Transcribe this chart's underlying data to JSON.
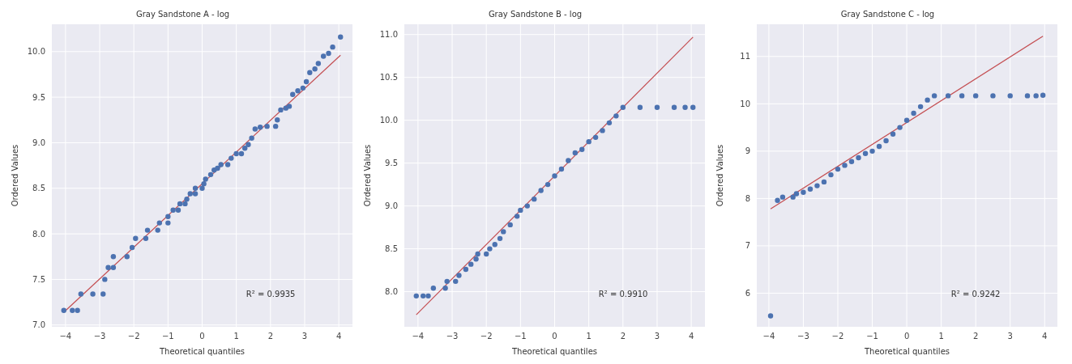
{
  "chart_data": [
    {
      "type": "scatter",
      "title": "Gray Sandstone A - log",
      "xlabel": "Theoretical quantiles",
      "ylabel": "Ordered Values",
      "annotations": [
        "R² = 0.9935"
      ],
      "grid": true,
      "xlim": [
        -4.4,
        4.4
      ],
      "ylim": [
        6.98,
        10.3
      ],
      "xticks": [
        {
          "value": -4,
          "label": "−4"
        },
        {
          "value": -3,
          "label": "−3"
        },
        {
          "value": -2,
          "label": "−2"
        },
        {
          "value": -1,
          "label": "−1"
        },
        0,
        1,
        2,
        3,
        4
      ],
      "yticks": [
        {
          "value": 7,
          "label": "7.0"
        },
        7.5,
        {
          "value": 8,
          "label": "8.0"
        },
        8.5,
        {
          "value": 9,
          "label": "9.0"
        },
        9.5,
        {
          "value": 10,
          "label": "10.0"
        }
      ],
      "series": [
        {
          "marker": "circle",
          "color": "#4c72b0",
          "x": [
            -4.05,
            -3.8,
            -3.65,
            -3.55,
            -3.2,
            -2.9,
            -2.85,
            -2.75,
            -2.6,
            -2.6,
            -2.2,
            -2.05,
            -1.95,
            -1.65,
            -1.6,
            -1.3,
            -1.25,
            -1.0,
            -1.0,
            -0.85,
            -0.7,
            -0.65,
            -0.5,
            -0.45,
            -0.35,
            -0.2,
            -0.2,
            0.0,
            0.05,
            0.1,
            0.25,
            0.35,
            0.45,
            0.55,
            0.75,
            0.85,
            1.0,
            1.15,
            1.25,
            1.35,
            1.45,
            1.55,
            1.7,
            1.9,
            2.15,
            2.2,
            2.3,
            2.45,
            2.55,
            2.65,
            2.8,
            2.95,
            3.05,
            3.15,
            3.3,
            3.4,
            3.55,
            3.7,
            3.82,
            4.05
          ],
          "values": [
            7.16,
            7.16,
            7.16,
            7.34,
            7.34,
            7.34,
            7.5,
            7.63,
            7.63,
            7.75,
            7.75,
            7.85,
            7.95,
            7.95,
            8.04,
            8.04,
            8.12,
            8.12,
            8.19,
            8.26,
            8.26,
            8.33,
            8.33,
            8.38,
            8.44,
            8.44,
            8.5,
            8.5,
            8.55,
            8.6,
            8.65,
            8.7,
            8.72,
            8.76,
            8.76,
            8.83,
            8.88,
            8.88,
            8.94,
            8.98,
            9.05,
            9.15,
            9.17,
            9.18,
            9.18,
            9.25,
            9.36,
            9.38,
            9.4,
            9.53,
            9.57,
            9.6,
            9.67,
            9.77,
            9.81,
            9.87,
            9.95,
            9.98,
            10.05,
            10.16
          ]
        },
        {
          "type": "line",
          "marker": "none",
          "color": "#c44e52",
          "x": [
            -4.05,
            4.05
          ],
          "values": [
            7.14,
            9.96
          ]
        }
      ]
    },
    {
      "type": "scatter",
      "title": "Gray Sandstone B - log",
      "xlabel": "Theoretical quantiles",
      "ylabel": "Ordered Values",
      "annotations": [
        "R² = 0.9910"
      ],
      "grid": true,
      "xlim": [
        -4.4,
        4.4
      ],
      "ylim": [
        7.59,
        11.12
      ],
      "xticks": [
        {
          "value": -4,
          "label": "−4"
        },
        {
          "value": -3,
          "label": "−3"
        },
        {
          "value": -2,
          "label": "−2"
        },
        {
          "value": -1,
          "label": "−1"
        },
        0,
        1,
        2,
        3,
        4
      ],
      "yticks": [
        {
          "value": 8,
          "label": "8.0"
        },
        8.5,
        {
          "value": 9,
          "label": "9.0"
        },
        9.5,
        {
          "value": 10,
          "label": "10.0"
        },
        10.5,
        {
          "value": 11,
          "label": "11.0"
        }
      ],
      "series": [
        {
          "marker": "circle",
          "color": "#4c72b0",
          "x": [
            -4.05,
            -3.85,
            -3.7,
            -3.55,
            -3.2,
            -3.15,
            -2.9,
            -2.8,
            -2.6,
            -2.45,
            -2.3,
            -2.25,
            -2.0,
            -1.9,
            -1.75,
            -1.6,
            -1.5,
            -1.3,
            -1.1,
            -1.0,
            -0.8,
            -0.6,
            -0.4,
            -0.2,
            0.0,
            0.2,
            0.4,
            0.6,
            0.8,
            1.0,
            1.2,
            1.4,
            1.6,
            1.8,
            2.0,
            2.5,
            3.0,
            3.5,
            3.82,
            4.05
          ],
          "values": [
            7.95,
            7.95,
            7.95,
            8.04,
            8.04,
            8.12,
            8.12,
            8.19,
            8.26,
            8.32,
            8.38,
            8.44,
            8.44,
            8.5,
            8.55,
            8.62,
            8.7,
            8.78,
            8.88,
            8.95,
            9.0,
            9.08,
            9.18,
            9.25,
            9.35,
            9.43,
            9.53,
            9.62,
            9.66,
            9.75,
            9.8,
            9.88,
            9.97,
            10.05,
            10.15,
            10.15,
            10.15,
            10.15,
            10.15,
            10.15
          ]
        },
        {
          "type": "line",
          "marker": "none",
          "color": "#c44e52",
          "x": [
            -4.05,
            4.05
          ],
          "values": [
            7.73,
            10.97
          ]
        }
      ]
    },
    {
      "type": "scatter",
      "title": "Gray Sandstone C - log",
      "xlabel": "Theoretical quantiles",
      "ylabel": "Ordered Values",
      "annotations": [
        "R² = 0.9242"
      ],
      "grid": true,
      "xlim": [
        -4.35,
        4.37
      ],
      "ylim": [
        5.29,
        11.68
      ],
      "xticks": [
        {
          "value": -4,
          "label": "−4"
        },
        {
          "value": -3,
          "label": "−3"
        },
        {
          "value": -2,
          "label": "−2"
        },
        {
          "value": -1,
          "label": "−1"
        },
        0,
        1,
        2,
        3,
        4
      ],
      "yticks": [
        6,
        7,
        8,
        9,
        10,
        11
      ],
      "series": [
        {
          "marker": "circle",
          "color": "#4c72b0",
          "x": [
            -3.95,
            -3.75,
            -3.6,
            -3.3,
            -3.2,
            -3.0,
            -2.8,
            -2.6,
            -2.4,
            -2.2,
            -2.0,
            -1.8,
            -1.6,
            -1.4,
            -1.2,
            -1.0,
            -0.8,
            -0.6,
            -0.4,
            -0.2,
            0.0,
            0.2,
            0.4,
            0.6,
            0.8,
            1.2,
            1.6,
            2.0,
            2.5,
            3.0,
            3.5,
            3.75,
            3.95
          ],
          "values": [
            5.52,
            7.96,
            8.03,
            8.03,
            8.1,
            8.13,
            8.2,
            8.27,
            8.35,
            8.5,
            8.62,
            8.7,
            8.78,
            8.86,
            8.95,
            9.0,
            9.1,
            9.22,
            9.36,
            9.5,
            9.65,
            9.8,
            9.94,
            10.08,
            10.17,
            10.17,
            10.17,
            10.17,
            10.17,
            10.17,
            10.17,
            10.17,
            10.18
          ]
        },
        {
          "type": "line",
          "marker": "none",
          "color": "#c44e52",
          "x": [
            -3.95,
            3.95
          ],
          "values": [
            7.78,
            11.43
          ]
        }
      ]
    }
  ]
}
